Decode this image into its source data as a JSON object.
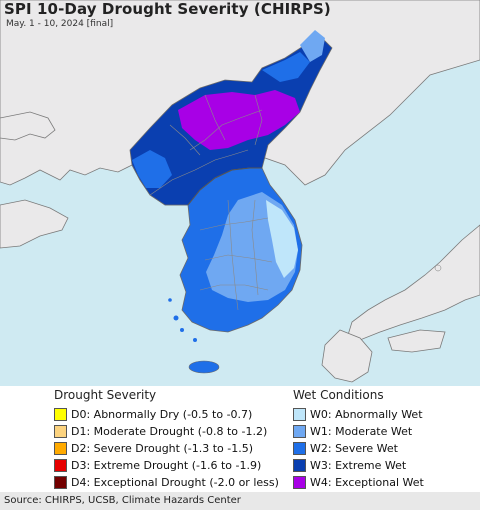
{
  "header": {
    "title": "SPI 10-Day Drought Severity (CHIRPS)",
    "subtitle": "May. 1 - 10, 2024 [final]"
  },
  "colors": {
    "sea": "#cfeaf2",
    "land": "#eae9ea",
    "border": "#8a8a8a"
  },
  "legend": {
    "drought": {
      "heading": "Drought Severity",
      "items": [
        {
          "label": "D0: Abnormally Dry (-0.5 to -0.7)",
          "color": "#ffff00"
        },
        {
          "label": "D1: Moderate Drought (-0.8 to -1.2)",
          "color": "#fcd37f"
        },
        {
          "label": "D2: Severe Drought (-1.3 to -1.5)",
          "color": "#ffaa00"
        },
        {
          "label": "D3: Extreme Drought (-1.6 to -1.9)",
          "color": "#e60000"
        },
        {
          "label": "D4: Exceptional Drought (-2.0 or less)",
          "color": "#730000"
        }
      ]
    },
    "wet": {
      "heading": "Wet Conditions",
      "items": [
        {
          "label": "W0: Abnormally Wet",
          "color": "#bfe6fa"
        },
        {
          "label": "W1: Moderate Wet",
          "color": "#6fa8f2"
        },
        {
          "label": "W2: Severe Wet",
          "color": "#1f6fe8"
        },
        {
          "label": "W3: Extreme Wet",
          "color": "#0a3fb0"
        },
        {
          "label": "W4: Exceptional Wet",
          "color": "#a800e6"
        }
      ]
    }
  },
  "footer": {
    "source": "Source: CHIRPS, UCSB, Climate Hazards Center"
  }
}
